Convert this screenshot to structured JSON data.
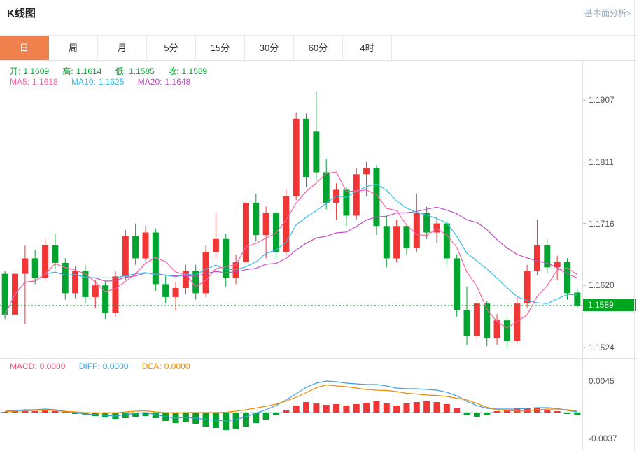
{
  "header": {
    "title": "K线图",
    "link": "基本面分析>"
  },
  "tabs": [
    {
      "label": "日",
      "active": true
    },
    {
      "label": "周",
      "active": false
    },
    {
      "label": "月",
      "active": false
    },
    {
      "label": "5分",
      "active": false
    },
    {
      "label": "15分",
      "active": false
    },
    {
      "label": "30分",
      "active": false
    },
    {
      "label": "60分",
      "active": false
    },
    {
      "label": "4时",
      "active": false
    }
  ],
  "ohlc": {
    "items": [
      {
        "label": "开:",
        "value": "1.1609"
      },
      {
        "label": "高:",
        "value": "1.1614"
      },
      {
        "label": "低:",
        "value": "1.1585"
      },
      {
        "label": "收:",
        "value": "1.1589"
      }
    ]
  },
  "ma_legend": {
    "items": [
      {
        "label": "MA5:",
        "value": "1.1618"
      },
      {
        "label": "MA10:",
        "value": "1.1625"
      },
      {
        "label": "MA20:",
        "value": "1.1648"
      }
    ]
  },
  "macd_legend": {
    "items": [
      {
        "label": "MACD:",
        "value": "0.0000"
      },
      {
        "label": "DIFF:",
        "value": "0.0000"
      },
      {
        "label": "DEA:",
        "value": "0.0000"
      }
    ]
  },
  "colors": {
    "up": "#f23535",
    "down": "#00a42e",
    "ma5": "#ff60a8",
    "ma10": "#33bdec",
    "ma20": "#c24ec2",
    "diff": "#3d9fe0",
    "dea": "#f08c00",
    "price_line": "#00a42e",
    "price_tag_bg": "#00a520",
    "tab_active_bg": "#f0814d",
    "macd_zero_line": "#8ab4d8"
  },
  "chart_data": {
    "type": "candlestick",
    "title": "K线图",
    "y_axis_labels": [
      "1.1907",
      "1.1811",
      "1.1716",
      "1.1620",
      "1.1524"
    ],
    "current_price": 1.1589,
    "current_price_label": "1.1589",
    "ma_periods": [
      5,
      10,
      20
    ],
    "candles": [
      [
        1.1638,
        1.1642,
        1.1568,
        1.1575
      ],
      [
        1.1575,
        1.1645,
        1.1565,
        1.1638
      ],
      [
        1.1638,
        1.1682,
        1.156,
        1.1662
      ],
      [
        1.1662,
        1.1675,
        1.1622,
        1.1632
      ],
      [
        1.1632,
        1.1692,
        1.1628,
        1.1682
      ],
      [
        1.1682,
        1.17,
        1.1645,
        1.1655
      ],
      [
        1.1655,
        1.1662,
        1.1598,
        1.1608
      ],
      [
        1.1608,
        1.165,
        1.16,
        1.1642
      ],
      [
        1.1642,
        1.1652,
        1.1592,
        1.1602
      ],
      [
        1.1602,
        1.1628,
        1.1585,
        1.162
      ],
      [
        1.162,
        1.1626,
        1.1568,
        1.1578
      ],
      [
        1.1578,
        1.1642,
        1.1572,
        1.1634
      ],
      [
        1.1634,
        1.1706,
        1.1628,
        1.1696
      ],
      [
        1.1696,
        1.1716,
        1.1652,
        1.1662
      ],
      [
        1.1662,
        1.1712,
        1.1658,
        1.1702
      ],
      [
        1.1702,
        1.1708,
        1.1612,
        1.1622
      ],
      [
        1.1622,
        1.1636,
        1.1592,
        1.1602
      ],
      [
        1.1602,
        1.1626,
        1.1582,
        1.1616
      ],
      [
        1.1616,
        1.1652,
        1.1606,
        1.1642
      ],
      [
        1.1642,
        1.1652,
        1.1598,
        1.1608
      ],
      [
        1.1608,
        1.1682,
        1.1602,
        1.1672
      ],
      [
        1.1672,
        1.1732,
        1.1662,
        1.1692
      ],
      [
        1.1692,
        1.17,
        1.1618,
        1.1632
      ],
      [
        1.1632,
        1.1668,
        1.1622,
        1.1656
      ],
      [
        1.1656,
        1.1758,
        1.165,
        1.1748
      ],
      [
        1.1748,
        1.1762,
        1.1688,
        1.1698
      ],
      [
        1.1698,
        1.1742,
        1.1662,
        1.1732
      ],
      [
        1.1732,
        1.1738,
        1.1662,
        1.1672
      ],
      [
        1.1672,
        1.1768,
        1.1666,
        1.1758
      ],
      [
        1.1758,
        1.1888,
        1.1752,
        1.1878
      ],
      [
        1.1878,
        1.1886,
        1.1772,
        1.1788
      ],
      [
        1.1858,
        1.192,
        1.1782,
        1.1795
      ],
      [
        1.1795,
        1.1815,
        1.1738,
        1.1748
      ],
      [
        1.1748,
        1.1778,
        1.1722,
        1.1768
      ],
      [
        1.1768,
        1.1772,
        1.1712,
        1.1728
      ],
      [
        1.1728,
        1.1802,
        1.1722,
        1.1792
      ],
      [
        1.1792,
        1.1812,
        1.1758,
        1.1802
      ],
      [
        1.1802,
        1.1806,
        1.1698,
        1.1712
      ],
      [
        1.1712,
        1.1728,
        1.1648,
        1.1662
      ],
      [
        1.1662,
        1.1722,
        1.1656,
        1.1712
      ],
      [
        1.1712,
        1.1716,
        1.1668,
        1.1678
      ],
      [
        1.1678,
        1.1762,
        1.1672,
        1.1732
      ],
      [
        1.1732,
        1.1742,
        1.1692,
        1.1702
      ],
      [
        1.1702,
        1.1726,
        1.1686,
        1.1716
      ],
      [
        1.1716,
        1.1722,
        1.1652,
        1.1662
      ],
      [
        1.1662,
        1.1668,
        1.1572,
        1.1582
      ],
      [
        1.1582,
        1.1618,
        1.1528,
        1.1542
      ],
      [
        1.1542,
        1.1602,
        1.1532,
        1.1592
      ],
      [
        1.1592,
        1.1596,
        1.1526,
        1.1538
      ],
      [
        1.1538,
        1.1576,
        1.1528,
        1.1566
      ],
      [
        1.1566,
        1.157,
        1.1524,
        1.1534
      ],
      [
        1.1534,
        1.1602,
        1.153,
        1.1592
      ],
      [
        1.1592,
        1.1652,
        1.1586,
        1.1642
      ],
      [
        1.1642,
        1.1722,
        1.1636,
        1.1682
      ],
      [
        1.1682,
        1.1692,
        1.1638,
        1.1648
      ],
      [
        1.1648,
        1.1666,
        1.1628,
        1.1656
      ],
      [
        1.1656,
        1.1662,
        1.1598,
        1.1608
      ],
      [
        1.1609,
        1.1614,
        1.1585,
        1.1589
      ]
    ],
    "macd": {
      "axis_top_label": "0.0045",
      "axis_bottom_label": "-0.0037",
      "diff": [
        0.0002,
        0.0003,
        0.0004,
        0.0004,
        0.0005,
        0.0004,
        0.0002,
        0.0,
        -0.0002,
        -0.0003,
        -0.0004,
        -0.0005,
        -0.0003,
        -0.0001,
        0.0,
        -0.0003,
        -0.0006,
        -0.0008,
        -0.0007,
        -0.0008,
        -0.001,
        -0.0011,
        -0.0012,
        -0.001,
        -0.0006,
        -0.0001,
        0.0004,
        0.001,
        0.0018,
        0.0027,
        0.0036,
        0.0042,
        0.0045,
        0.0044,
        0.0042,
        0.0041,
        0.004,
        0.004,
        0.0038,
        0.0035,
        0.0034,
        0.0034,
        0.0033,
        0.0032,
        0.0029,
        0.0024,
        0.0016,
        0.001,
        0.0006,
        0.0005,
        0.0005,
        0.0005,
        0.0006,
        0.0007,
        0.0007,
        0.0006,
        0.0003,
        0.0001
      ],
      "hist": [
        0.0001,
        0.0002,
        0.0003,
        0.0002,
        0.0003,
        0.0002,
        0.0001,
        -0.0002,
        -0.0004,
        -0.0005,
        -0.0007,
        -0.0009,
        -0.0008,
        -0.0006,
        -0.0005,
        -0.0008,
        -0.0012,
        -0.0015,
        -0.0014,
        -0.0016,
        -0.002,
        -0.0022,
        -0.0025,
        -0.0024,
        -0.002,
        -0.0015,
        -0.001,
        -0.0004,
        0.0003,
        0.001,
        0.0015,
        0.0013,
        0.0011,
        0.0012,
        0.001,
        0.0012,
        0.0014,
        0.0016,
        0.0013,
        0.001,
        0.0013,
        0.0015,
        0.0016,
        0.0015,
        0.0012,
        0.0007,
        -0.0004,
        -0.0006,
        -0.0003,
        0.0002,
        0.0004,
        0.0006,
        0.0007,
        0.0006,
        0.0004,
        0.0002,
        -0.0002,
        -0.0003
      ]
    }
  }
}
